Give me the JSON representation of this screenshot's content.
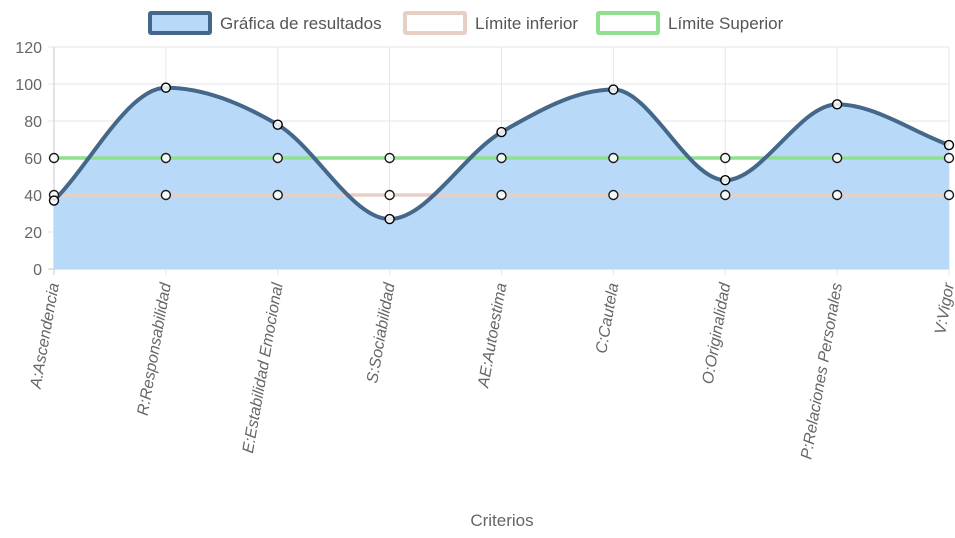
{
  "chart_data": {
    "type": "line",
    "categories": [
      "A:Ascendencia",
      "R:Responsabilidad",
      "E:Estabilidad Emocional",
      "S:Sociabilidad",
      "AE:Autoestima",
      "C:Cautela",
      "O:Originalidad",
      "P:Relaciones Personales",
      "V:Vigor"
    ],
    "series": [
      {
        "name": "Gráfica de resultados",
        "values": [
          37,
          98,
          78,
          27,
          74,
          97,
          48,
          89,
          67
        ],
        "fill": true,
        "color": "#44678a",
        "fill_color": "#b8d9f7"
      },
      {
        "name": "Límite inferior",
        "values": [
          40,
          40,
          40,
          40,
          40,
          40,
          40,
          40,
          40
        ],
        "fill": false,
        "color": "#e8cfc6"
      },
      {
        "name": "Límite Superior",
        "values": [
          60,
          60,
          60,
          60,
          60,
          60,
          60,
          60,
          60
        ],
        "fill": false,
        "color": "#8fe08f"
      }
    ],
    "xlabel": "Criterios",
    "ylabel": "",
    "ylim": [
      0,
      120
    ],
    "yticks": [
      0,
      20,
      40,
      60,
      80,
      100,
      120
    ],
    "grid": true,
    "legend": "top-center"
  }
}
